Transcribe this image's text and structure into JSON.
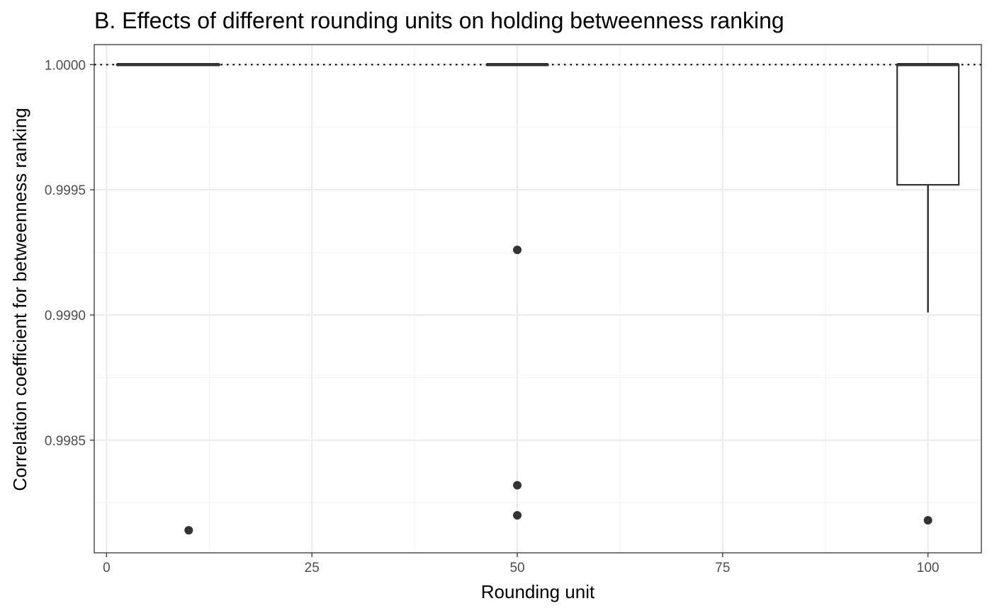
{
  "chart_data": {
    "type": "boxplot",
    "title": "B. Effects of different rounding units on holding betweenness ranking",
    "xlabel": "Rounding unit",
    "ylabel": "Correlation coefficient for betweenness ranking",
    "xlim": [
      -1.5,
      106.5
    ],
    "ylim": [
      0.99805,
      1.00008
    ],
    "x_ticks": [
      0,
      25,
      50,
      75,
      100
    ],
    "x_tick_labels": [
      "0",
      "25",
      "50",
      "75",
      "100"
    ],
    "y_ticks": [
      0.9985,
      0.999,
      0.9995,
      1.0
    ],
    "y_tick_labels": [
      "0.9985",
      "0.9990",
      "0.9995",
      "1.0000"
    ],
    "grid": true,
    "reference_line": {
      "y": 1.0,
      "style": "dotted"
    },
    "boxes": [
      {
        "x": 5,
        "q1": 1.0,
        "median": 1.0,
        "q3": 1.0,
        "whisker_low": 1.0,
        "whisker_high": 1.0,
        "outliers": []
      },
      {
        "x": 10,
        "q1": 1.0,
        "median": 1.0,
        "q3": 1.0,
        "whisker_low": 1.0,
        "whisker_high": 1.0,
        "outliers": [
          0.99814
        ]
      },
      {
        "x": 50,
        "q1": 1.0,
        "median": 1.0,
        "q3": 1.0,
        "whisker_low": 1.0,
        "whisker_high": 1.0,
        "outliers": [
          0.99926,
          0.99832,
          0.9982
        ]
      },
      {
        "x": 100,
        "q1": 0.99952,
        "median": 1.0,
        "q3": 1.0,
        "whisker_low": 0.99901,
        "whisker_high": 1.0,
        "outliers": [
          0.99818
        ]
      }
    ]
  }
}
